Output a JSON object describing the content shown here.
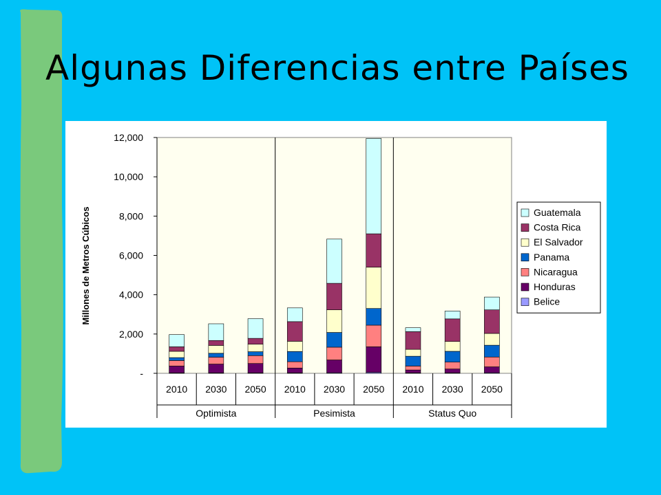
{
  "slide": {
    "title": "Algunas Diferencias entre Países"
  },
  "colors": {
    "background": "#00c3f7",
    "stripe": "#7ac97c",
    "plot_area": "#fffff0"
  },
  "chart_data": {
    "type": "bar",
    "stacked": true,
    "ylabel": "Millones de Metros Cúbicos",
    "ylim": [
      0,
      12000
    ],
    "yticks": [
      0,
      2000,
      4000,
      6000,
      8000,
      10000,
      12000
    ],
    "ytick_labels": [
      "-",
      "2,000",
      "4,000",
      "6,000",
      "8,000",
      "10,000",
      "12,000"
    ],
    "grid": false,
    "legend_position": "right",
    "groups": [
      "Optimista",
      "Pesimista",
      "Status Quo"
    ],
    "categories": [
      "2010",
      "2030",
      "2050",
      "2010",
      "2030",
      "2050",
      "2010",
      "2030",
      "2050"
    ],
    "series": [
      {
        "name": "Belice",
        "color": "#9999ff",
        "values": [
          20,
          20,
          20,
          20,
          30,
          50,
          20,
          20,
          30
        ]
      },
      {
        "name": "Honduras",
        "color": "#660066",
        "values": [
          350,
          450,
          480,
          250,
          650,
          1300,
          150,
          200,
          300
        ]
      },
      {
        "name": "Nicaragua",
        "color": "#ff8080",
        "values": [
          280,
          350,
          400,
          320,
          650,
          1100,
          200,
          350,
          500
        ]
      },
      {
        "name": "Panama",
        "color": "#0066cc",
        "values": [
          150,
          200,
          200,
          520,
          750,
          850,
          500,
          550,
          600
        ]
      },
      {
        "name": "El Salvador",
        "color": "#ffffcc",
        "values": [
          320,
          400,
          380,
          520,
          1150,
          2100,
          350,
          500,
          600
        ]
      },
      {
        "name": "Costa Rica",
        "color": "#993366",
        "values": [
          230,
          250,
          300,
          1000,
          1350,
          1700,
          900,
          1150,
          1200
        ]
      },
      {
        "name": "Guatemala",
        "color": "#ccffff",
        "values": [
          620,
          850,
          1000,
          700,
          2250,
          4850,
          200,
          400,
          650
        ]
      }
    ]
  }
}
